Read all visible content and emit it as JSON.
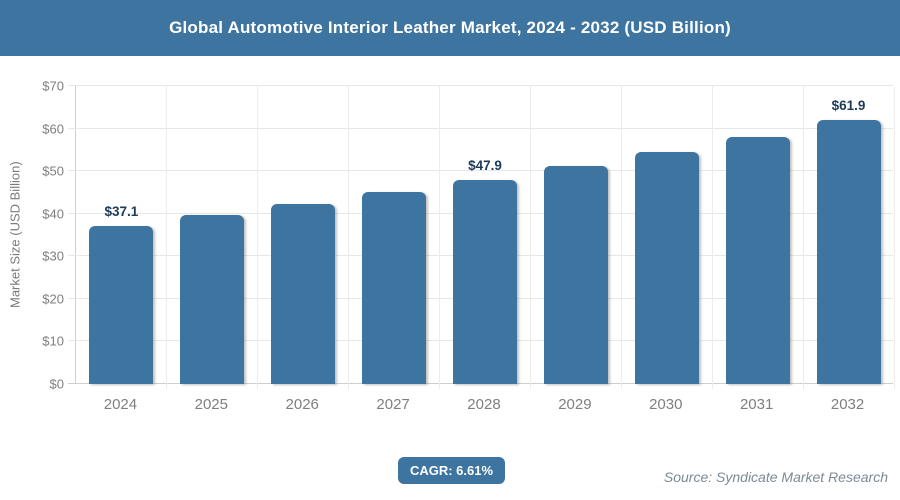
{
  "header": {
    "title": "Global Automotive Interior Leather Market, 2024 - 2032 (USD Billion)"
  },
  "chart_data": {
    "type": "bar",
    "title": "Global Automotive Interior Leather Market, 2024 - 2032 (USD Billion)",
    "categories": [
      "2024",
      "2025",
      "2026",
      "2027",
      "2028",
      "2029",
      "2030",
      "2031",
      "2032"
    ],
    "values": [
      37.1,
      39.6,
      42.2,
      45.0,
      47.9,
      51.1,
      54.5,
      58.1,
      61.9
    ],
    "data_labels": [
      "$37.1",
      "",
      "",
      "",
      "$47.9",
      "",
      "",
      "",
      "$61.9"
    ],
    "xlabel": "",
    "ylabel": "Market Size (USD Billion)",
    "ylim": [
      0,
      70
    ],
    "yticks": [
      {
        "value": 0,
        "label": "$0"
      },
      {
        "value": 10,
        "label": "$10"
      },
      {
        "value": 20,
        "label": "$20"
      },
      {
        "value": 30,
        "label": "$30"
      },
      {
        "value": 40,
        "label": "$40"
      },
      {
        "value": 50,
        "label": "$50"
      },
      {
        "value": 60,
        "label": "$60"
      },
      {
        "value": 70,
        "label": "$70"
      }
    ],
    "grid": true,
    "legend": "none",
    "bar_color": "#3e75a0",
    "label_color": "#1e3a5a"
  },
  "footer": {
    "cagr_label": "CAGR: 6.61%",
    "source": "Source: Syndicate Market Research"
  }
}
